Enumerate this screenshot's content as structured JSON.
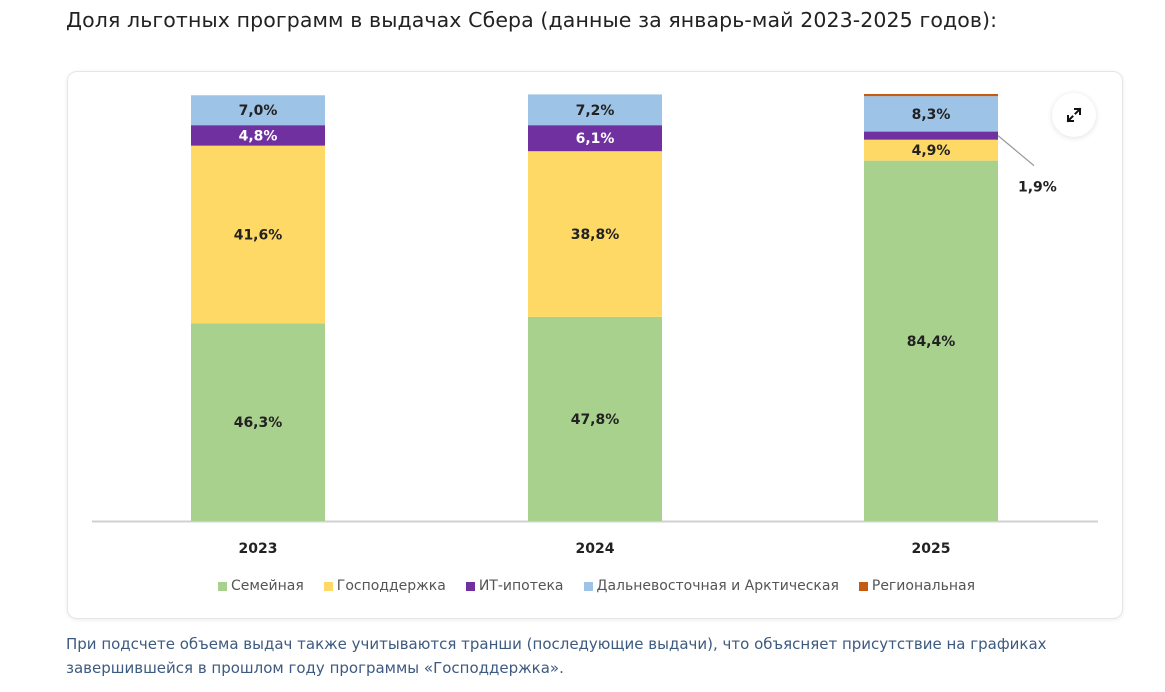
{
  "page": {
    "title": "Доля льготных программ в выдачах Сбера (данные за январь-май 2023-2025 годов):",
    "note": "При подсчете объема выдач также учитываются транши (последующие выдачи), что объясняет присутствие на графиках завершившейся в прошлом году программы «Господдержка».",
    "expand_icon": "expand-arrows-icon"
  },
  "chart_data": {
    "type": "bar",
    "stacked": true,
    "title": "Доля льготных программ в выдачах Сбера (данные за январь-май 2023-2025 годов)",
    "xlabel": "",
    "ylabel": "",
    "ylim": [
      0,
      100
    ],
    "grid": false,
    "legend_position": "bottom",
    "categories": [
      "2023",
      "2024",
      "2025"
    ],
    "series": [
      {
        "name": "Семейная",
        "color": "#a9d18e",
        "values": [
          46.3,
          47.8,
          84.4
        ],
        "labels": [
          "46,3%",
          "47,8%",
          "84,4%"
        ],
        "label_color": "#222222"
      },
      {
        "name": "Господдержка",
        "color": "#ffd966",
        "values": [
          41.6,
          38.8,
          4.9
        ],
        "labels": [
          "41,6%",
          "38,8%",
          "4,9%"
        ],
        "label_color": "#222222"
      },
      {
        "name": "ИТ-ипотека",
        "color": "#7030a0",
        "values": [
          4.8,
          6.1,
          1.9
        ],
        "labels": [
          "4,8%",
          "6,1%",
          "1,9%"
        ],
        "label_color": "#ffffff"
      },
      {
        "name": "Дальневосточная и Арктическая",
        "color": "#9dc3e6",
        "values": [
          7.0,
          7.2,
          8.3
        ],
        "labels": [
          "7,0%",
          "7,2%",
          "8,3%"
        ],
        "label_color": "#222222"
      },
      {
        "name": "Региональная",
        "color": "#c55a11",
        "values": [
          0,
          0,
          0.5
        ],
        "labels": [
          "",
          "",
          ""
        ],
        "label_color": "#222222"
      }
    ],
    "annotations": [
      {
        "category": "2025",
        "series": "ИТ-ипотека",
        "text": "1,9%",
        "callout": true
      }
    ]
  }
}
